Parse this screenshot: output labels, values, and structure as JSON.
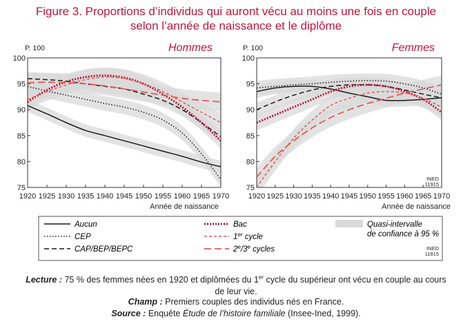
{
  "figure": {
    "title_line1": "Figure 3. Proportions d’individus qui auront vécu au moins une fois en couple",
    "title_line2": "selon l’année de naissance et le diplôme",
    "y_unit": "P. 100",
    "xlabel": "Année de naissance",
    "stamp_panel": [
      "INED",
      "11915"
    ],
    "stamp_legend": [
      "INED",
      "11815"
    ]
  },
  "legend": {
    "items": [
      {
        "key": "aucun",
        "label": "Aucun"
      },
      {
        "key": "cep",
        "label": "CEP"
      },
      {
        "key": "cap",
        "label": "CAP/BEP/BEPC"
      },
      {
        "key": "bac",
        "label": "Bac"
      },
      {
        "key": "cycle1",
        "label_main": "1",
        "label_sup": "er",
        "label_tail": " cycle"
      },
      {
        "key": "cycle23",
        "label_main": "2",
        "label_sup1": "e",
        "label_mid": "/3",
        "label_sup2": "e",
        "label_tail": " cycles"
      }
    ],
    "ci_label_line1": "Quasi-intervalle",
    "ci_label_line2": "de confiance à 95 %"
  },
  "notes": {
    "lecture_label": "Lecture :",
    "lecture_text_a": " 75 % des femmes nées en 1920 et diplômées du 1",
    "lecture_sup": "er",
    "lecture_text_b": " cycle du supérieur ont vécu en couple au cours",
    "lecture_line2": "de leur vie.",
    "champ_label": "Champ :",
    "champ_text": " Premiers couples des individus nés en France.",
    "source_label": "Source :",
    "source_text_a": " Enquête ",
    "source_italic": "Étude de l’histoire familiale",
    "source_text_b": " (Insee-Ined, 1999)."
  },
  "colors": {
    "title": "#c4143c",
    "dark": "#1a1a1a",
    "red": "#c4143c",
    "light_red": "#e05a5a",
    "ci_band": "#d9d9d9"
  },
  "chart_data": [
    {
      "type": "line",
      "title": "Hommes",
      "xlabel": "Année de naissance",
      "ylabel": "P. 100",
      "xlim": [
        1920,
        1970
      ],
      "ylim": [
        75,
        100
      ],
      "xticks": [
        1920,
        1925,
        1930,
        1935,
        1940,
        1945,
        1950,
        1955,
        1960,
        1965,
        1970
      ],
      "yticks": [
        75,
        80,
        85,
        90,
        95,
        100
      ],
      "x": [
        1920,
        1925,
        1930,
        1935,
        1940,
        1945,
        1950,
        1955,
        1960,
        1965,
        1970
      ],
      "series": [
        {
          "name": "Aucun",
          "values": [
            90.8,
            89.2,
            87.5,
            86.0,
            85.0,
            84.0,
            83.0,
            82.0,
            81.0,
            79.9,
            79.0
          ]
        },
        {
          "name": "CEP",
          "values": [
            94.5,
            93.6,
            92.8,
            92.0,
            91.2,
            90.5,
            89.5,
            88.0,
            85.5,
            81.5,
            76.5
          ]
        },
        {
          "name": "CAP/BEP/BEPC",
          "values": [
            96.0,
            95.8,
            95.5,
            95.0,
            94.5,
            94.0,
            93.0,
            91.8,
            90.0,
            87.5,
            84.8
          ]
        },
        {
          "name": "Bac",
          "values": [
            91.5,
            93.8,
            95.4,
            96.3,
            96.6,
            96.2,
            95.0,
            93.0,
            90.5,
            87.5,
            84.0
          ]
        },
        {
          "name": "1er cycle",
          "values": [
            92.0,
            93.5,
            94.8,
            95.8,
            96.3,
            96.0,
            95.0,
            93.5,
            91.5,
            89.5,
            87.5
          ]
        },
        {
          "name": "2e/3e cycles",
          "values": [
            95.2,
            95.3,
            95.2,
            95.0,
            94.6,
            94.0,
            93.4,
            92.8,
            92.2,
            91.8,
            91.5
          ]
        }
      ]
    },
    {
      "type": "line",
      "title": "Femmes",
      "xlabel": "Année de naissance",
      "ylabel": "P. 100",
      "xlim": [
        1920,
        1970
      ],
      "ylim": [
        75,
        100
      ],
      "xticks": [
        1920,
        1925,
        1930,
        1935,
        1940,
        1945,
        1950,
        1955,
        1960,
        1965,
        1970
      ],
      "yticks": [
        75,
        80,
        85,
        90,
        95,
        100
      ],
      "x": [
        1920,
        1925,
        1930,
        1935,
        1940,
        1945,
        1950,
        1955,
        1960,
        1965,
        1970
      ],
      "series": [
        {
          "name": "Aucun",
          "values": [
            93.5,
            94.2,
            94.5,
            94.5,
            94.0,
            93.2,
            92.5,
            91.8,
            91.8,
            92.0,
            92.3
          ]
        },
        {
          "name": "CEP",
          "values": [
            94.2,
            94.5,
            94.8,
            95.0,
            95.3,
            95.5,
            95.6,
            95.5,
            95.0,
            94.2,
            93.0
          ]
        },
        {
          "name": "CAP/BEP/BEPC",
          "values": [
            90.0,
            91.5,
            92.8,
            93.8,
            94.5,
            94.8,
            94.8,
            94.5,
            93.8,
            93.0,
            92.3
          ]
        },
        {
          "name": "Bac",
          "values": [
            87.5,
            89.0,
            90.5,
            92.0,
            93.5,
            94.5,
            94.8,
            94.5,
            93.5,
            92.0,
            89.5
          ]
        },
        {
          "name": "1er cycle",
          "values": [
            75.0,
            80.0,
            84.5,
            88.0,
            90.8,
            92.2,
            93.2,
            93.5,
            93.2,
            92.2,
            90.5
          ]
        },
        {
          "name": "2e/3e cycles",
          "values": [
            77.0,
            81.0,
            84.0,
            86.5,
            88.5,
            90.0,
            91.2,
            92.2,
            93.2,
            94.0,
            94.8
          ]
        }
      ]
    }
  ]
}
